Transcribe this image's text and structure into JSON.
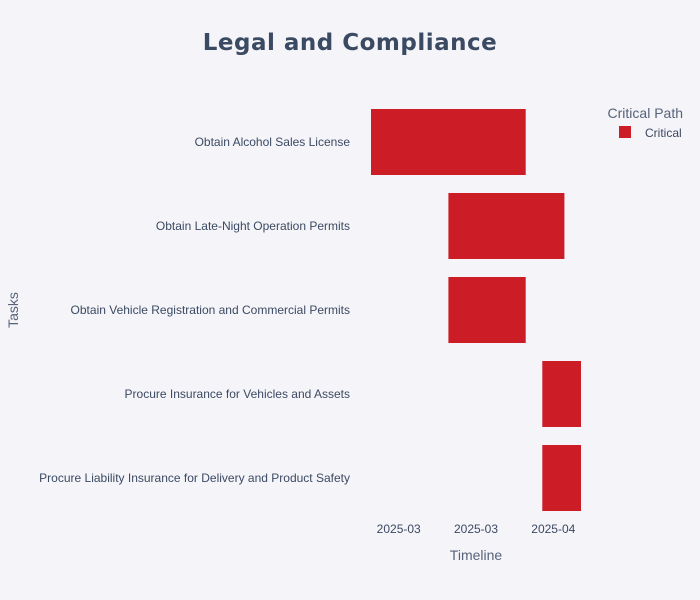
{
  "chart_data": {
    "type": "gantt",
    "title": "Legal and Compliance",
    "xlabel": "Timeline",
    "ylabel": "Tasks",
    "x_ticks": [
      {
        "date": "2025-03-04",
        "label": "2025-03"
      },
      {
        "date": "2025-03-18",
        "label": "2025-03"
      },
      {
        "date": "2025-04-01",
        "label": "2025-04"
      }
    ],
    "xlim": [
      "2025-02-25",
      "2025-04-08"
    ],
    "tasks": [
      {
        "name": "Obtain Alcohol Sales License",
        "start": "2025-02-27",
        "end": "2025-03-27",
        "category": "Critical"
      },
      {
        "name": "Obtain Late-Night Operation Permits",
        "start": "2025-03-13",
        "end": "2025-04-03",
        "category": "Critical"
      },
      {
        "name": "Obtain Vehicle Registration and Commercial Permits",
        "start": "2025-03-13",
        "end": "2025-03-27",
        "category": "Critical"
      },
      {
        "name": "Procure Insurance for Vehicles and Assets",
        "start": "2025-03-30",
        "end": "2025-04-06",
        "category": "Critical"
      },
      {
        "name": "Procure Liability Insurance for Delivery and Product Safety",
        "start": "2025-03-30",
        "end": "2025-04-06",
        "category": "Critical"
      }
    ],
    "legend": {
      "title": "Critical Path",
      "position": "top-right",
      "items": [
        {
          "label": "Critical",
          "color": "#cc1c26"
        }
      ]
    },
    "colors": {
      "Critical": "#cc1c26",
      "background": "#f5f4f8"
    },
    "grid": false
  }
}
